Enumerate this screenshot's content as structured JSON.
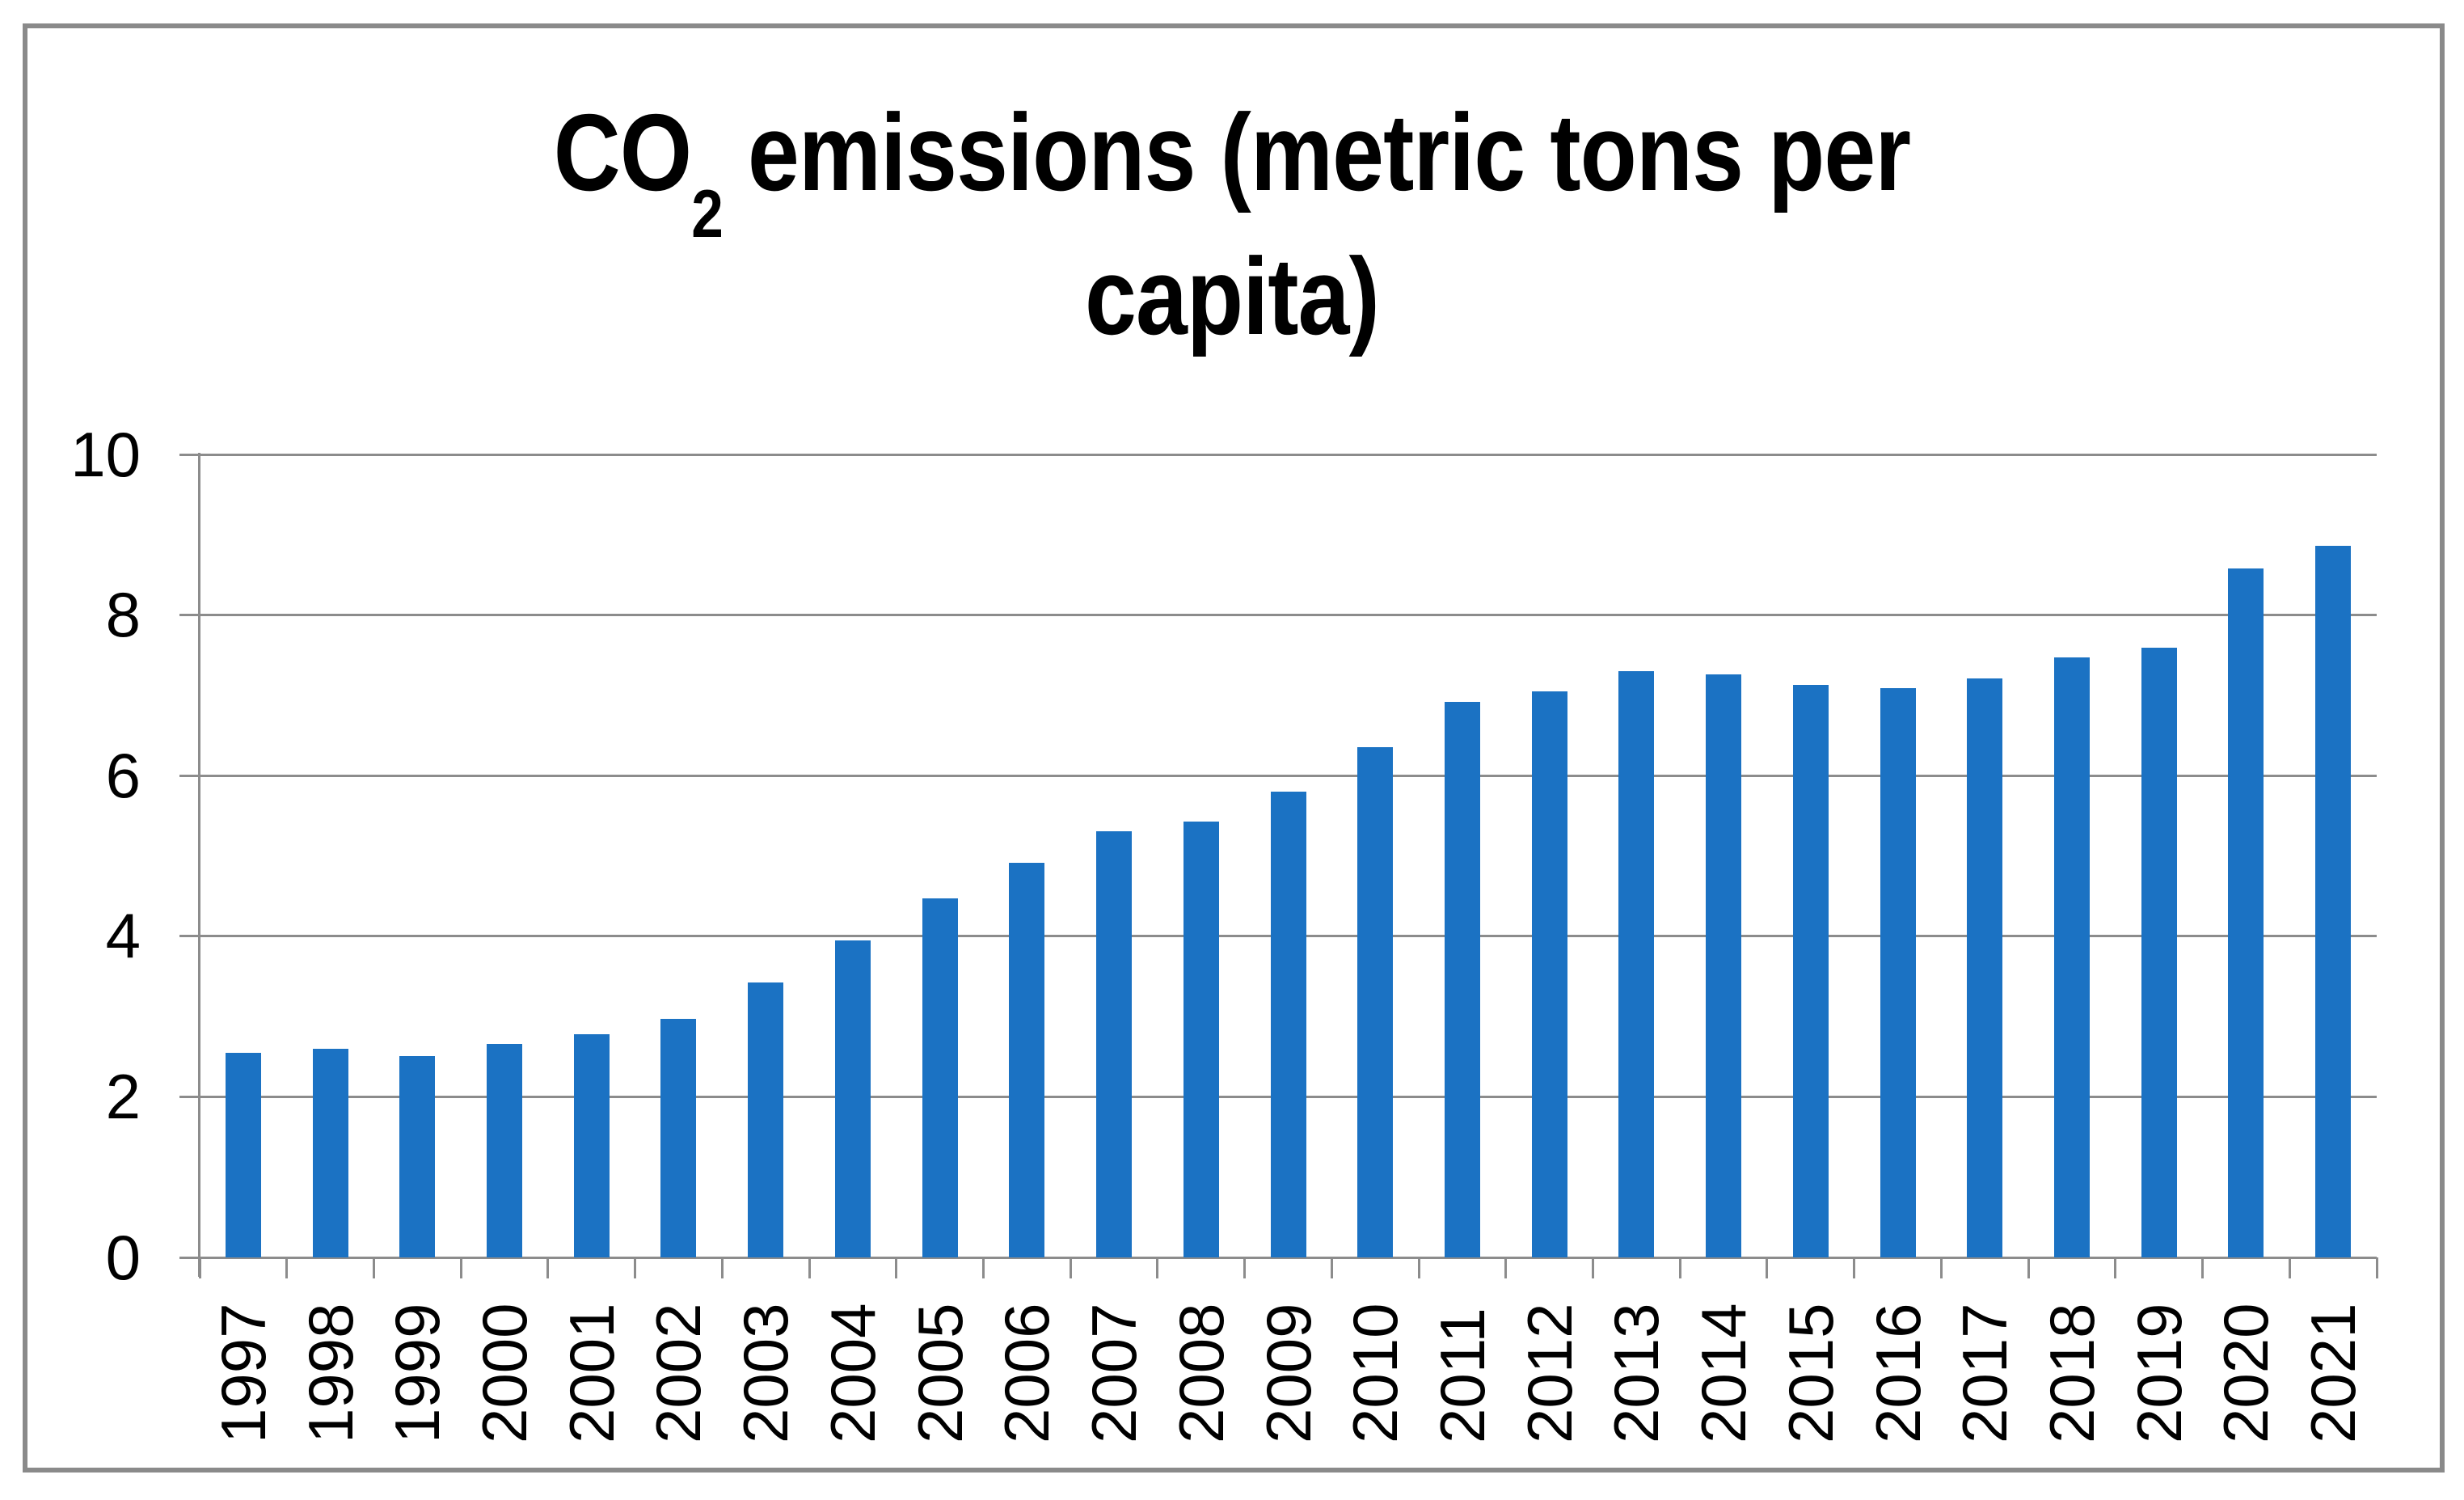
{
  "chart_data": {
    "type": "bar",
    "title": "CO2 emissions (metric tons per capita)",
    "title_parts": {
      "prefix": "CO",
      "subscript": "2",
      "suffix": " emissions (metric tons per capita)"
    },
    "categories": [
      "1997",
      "1998",
      "1999",
      "2000",
      "2001",
      "2002",
      "2003",
      "2004",
      "2005",
      "2006",
      "2007",
      "2008",
      "2009",
      "2010",
      "2011",
      "2012",
      "2013",
      "2014",
      "2015",
      "2016",
      "2017",
      "2018",
      "2019",
      "2020",
      "2021"
    ],
    "values": [
      2.55,
      2.6,
      2.51,
      2.66,
      2.78,
      2.97,
      3.42,
      3.95,
      4.47,
      4.91,
      5.31,
      5.43,
      5.8,
      6.35,
      6.92,
      7.05,
      7.3,
      7.26,
      7.13,
      7.09,
      7.21,
      7.47,
      7.59,
      8.58,
      8.86
    ],
    "xlabel": "",
    "ylabel": "",
    "ylim": [
      0,
      10
    ],
    "yticks": [
      0,
      2,
      4,
      6,
      8,
      10
    ],
    "grid": true,
    "legend": false,
    "colors": {
      "bar": "#1b72c3",
      "grid": "#8c8c8c",
      "axis": "#8c8c8c",
      "frame": "#8a8a8a",
      "text": "#000000",
      "background": "#ffffff"
    }
  }
}
